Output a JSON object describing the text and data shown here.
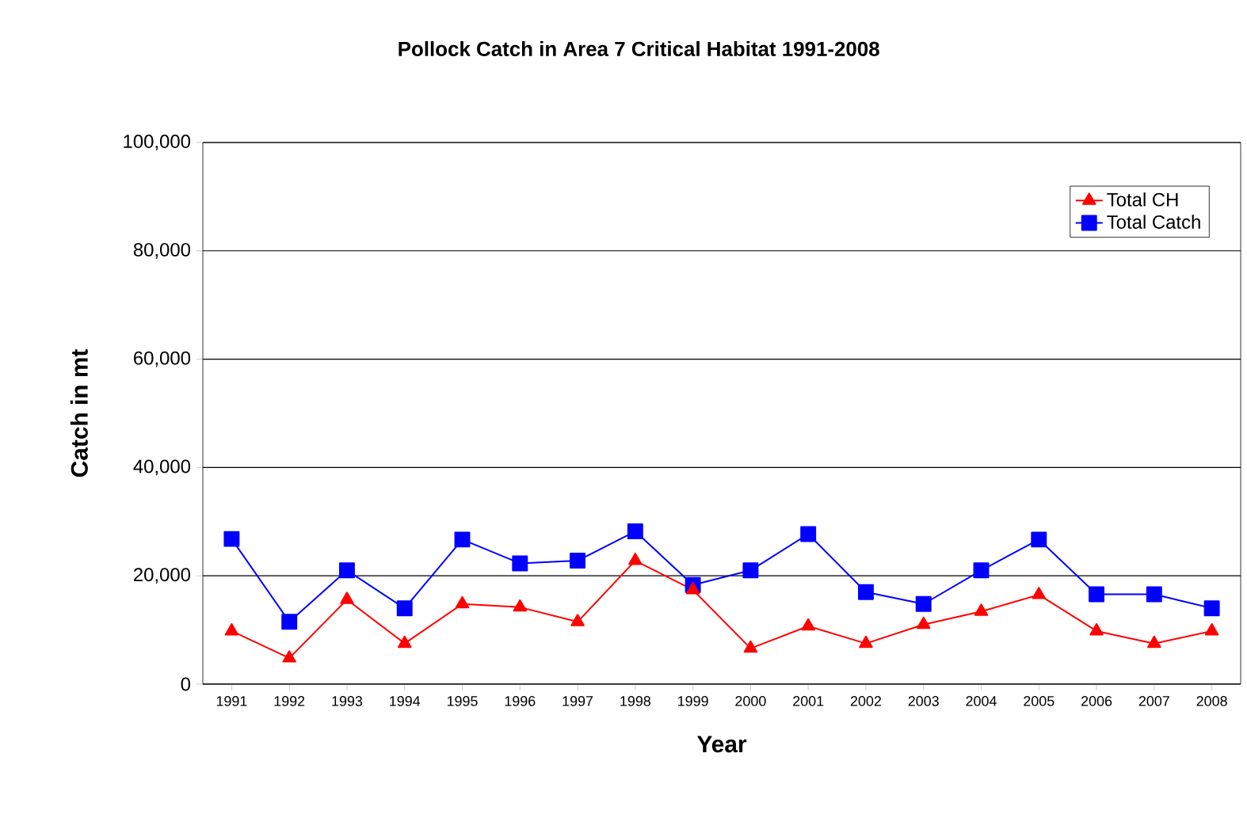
{
  "chart_data": {
    "type": "line",
    "title": "Pollock Catch in Area 7 Critical Habitat 1991-2008",
    "xlabel": "Year",
    "ylabel": "Catch in mt",
    "categories": [
      "1991",
      "1992",
      "1993",
      "1994",
      "1995",
      "1996",
      "1997",
      "1998",
      "1999",
      "2000",
      "2001",
      "2002",
      "2003",
      "2004",
      "2005",
      "2006",
      "2007",
      "2008"
    ],
    "series": [
      {
        "name": "Total CH",
        "color": "#ff0000",
        "marker": "triangle",
        "values": [
          9800,
          4800,
          15600,
          7500,
          14800,
          14200,
          11500,
          22800,
          17400,
          6600,
          10700,
          7500,
          11000,
          13400,
          16500,
          9800,
          7500,
          9800
        ]
      },
      {
        "name": "Total Catch",
        "color": "#0000ff",
        "marker": "square",
        "values": [
          26800,
          11500,
          21000,
          14000,
          26700,
          22300,
          22800,
          28200,
          18300,
          21000,
          27700,
          17000,
          14800,
          21000,
          26700,
          16600,
          16600,
          14000
        ]
      }
    ],
    "ylim": [
      0,
      100000
    ],
    "yticks": [
      {
        "value": 0,
        "label": "0"
      },
      {
        "value": 20000,
        "label": "20,000"
      },
      {
        "value": 40000,
        "label": "40,000"
      },
      {
        "value": 60000,
        "label": "60,000"
      },
      {
        "value": 80000,
        "label": "80,000"
      },
      {
        "value": 100000,
        "label": "100,000"
      }
    ],
    "grid": "y",
    "legend": "top right",
    "line_style": "solid"
  }
}
